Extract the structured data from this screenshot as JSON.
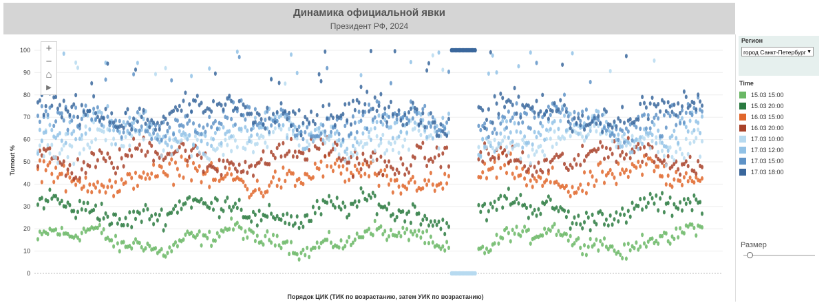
{
  "chart_data": {
    "type": "scatter",
    "title": "Динамика официальной явки",
    "subtitle": "Президент РФ, 2024",
    "xlabel": "Порядок ЦИК (ТИК по возрастанию, затем УИК по возрастанию)",
    "ylabel": "Turnout %",
    "ylim": [
      0,
      100
    ],
    "yticks": [
      "0",
      "10",
      "20",
      "30",
      "40",
      "50",
      "60",
      "70",
      "80",
      "90",
      "100"
    ],
    "x_count": 1000,
    "gap_range": [
      620,
      660
    ],
    "series": [
      {
        "name": "15.03 15:00",
        "color": "#6ab765",
        "base": 15,
        "spread": 5
      },
      {
        "name": "15.03 20:00",
        "color": "#2a7a40",
        "base": 28,
        "spread": 7
      },
      {
        "name": "16.03 15:00",
        "color": "#e0672c",
        "base": 43,
        "spread": 8
      },
      {
        "name": "16.03 20:00",
        "color": "#a8422a",
        "base": 52,
        "spread": 8
      },
      {
        "name": "17.03 10:00",
        "color": "#b7daf0",
        "base": 60,
        "spread": 9
      },
      {
        "name": "17.03 12:00",
        "color": "#92c2e6",
        "base": 64,
        "spread": 9
      },
      {
        "name": "17.03 15:00",
        "color": "#5f93c7",
        "base": 68,
        "spread": 9
      },
      {
        "name": "17.03 18:00",
        "color": "#3a679c",
        "base": 72,
        "spread": 9
      }
    ]
  },
  "controls": {
    "zoom_in": "+",
    "zoom_out": "−",
    "home": "⌂",
    "play": "▶"
  },
  "filter": {
    "title": "Регион",
    "selected": "город Санкт-Петербург"
  },
  "legend": {
    "title": "Time"
  },
  "size": {
    "label": "Размер",
    "value": 0.05
  }
}
